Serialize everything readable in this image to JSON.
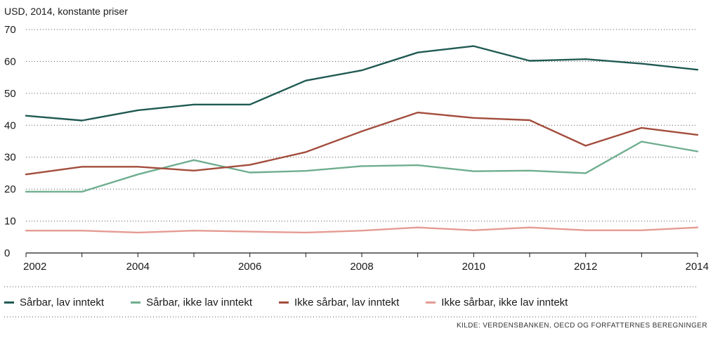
{
  "chart_data": {
    "type": "line",
    "title": "",
    "ylabel": "USD, 2014, konstante priser",
    "xlabel": "",
    "x": [
      2002,
      2003,
      2004,
      2005,
      2006,
      2007,
      2008,
      2009,
      2010,
      2011,
      2012,
      2013,
      2014
    ],
    "x_ticks": [
      "2002",
      "2004",
      "2006",
      "2008",
      "2010",
      "2012",
      "2014"
    ],
    "y_ticks": [
      "0",
      "10",
      "20",
      "30",
      "40",
      "50",
      "60",
      "70"
    ],
    "ylim": [
      0,
      70
    ],
    "xlim": [
      2002,
      2014
    ],
    "grid": "horizontal dotted",
    "legend_position": "bottom",
    "series": [
      {
        "name": "Sårbar, lav inntekt",
        "color": "#1f5a52",
        "values": [
          43,
          41.5,
          44.7,
          46.5,
          46.5,
          54,
          57.2,
          62.8,
          64.8,
          60.2,
          60.7,
          59.3,
          57.4
        ]
      },
      {
        "name": "Sårbar, ikke lav inntekt",
        "color": "#6fae8f",
        "values": [
          19.2,
          19.2,
          24.6,
          29.1,
          25.2,
          25.7,
          27.2,
          27.5,
          25.6,
          25.8,
          25,
          34.9,
          31.8
        ]
      },
      {
        "name": "Ikke sårbar, lav inntekt",
        "color": "#a34d3d",
        "values": [
          24.6,
          27,
          27,
          25.8,
          27.6,
          31.6,
          38.1,
          44,
          42.3,
          41.6,
          33.6,
          39.2,
          37
        ]
      },
      {
        "name": "Ikke sårbar, ikke lav inntekt",
        "color": "#e59b93",
        "values": [
          7,
          7,
          6.4,
          7,
          6.7,
          6.4,
          7,
          8,
          7.1,
          8,
          7.1,
          7.1,
          8
        ]
      }
    ],
    "source": "KILDE: VERDENSBANKEN, OECD OG FORFATTERNES BEREGNINGER"
  }
}
